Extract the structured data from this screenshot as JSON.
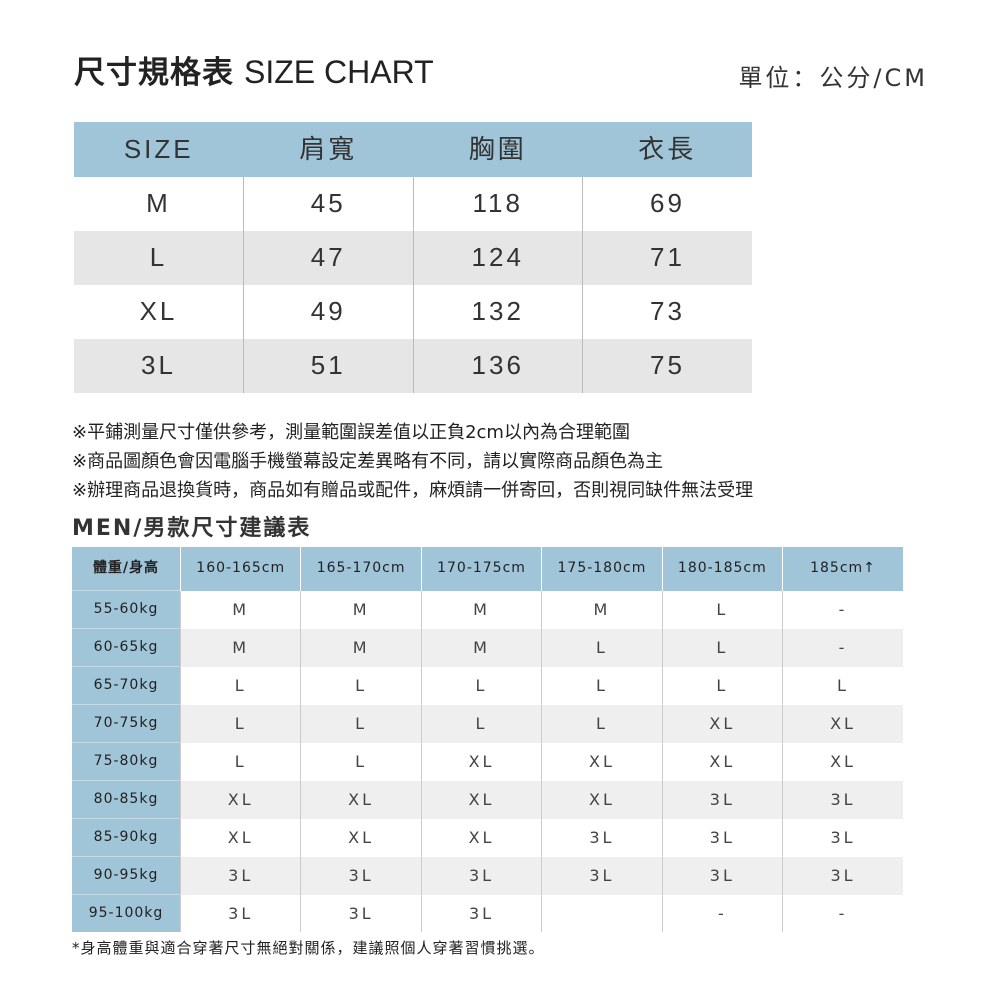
{
  "header": {
    "title_zh": "尺寸規格表",
    "title_en": "SIZE CHART",
    "unit": "單位：公分/CM"
  },
  "size_table": {
    "columns": [
      "SIZE",
      "肩寬",
      "胸圍",
      "衣長"
    ],
    "rows": [
      [
        "M",
        "45",
        "118",
        "69"
      ],
      [
        "L",
        "47",
        "124",
        "71"
      ],
      [
        "XL",
        "49",
        "132",
        "73"
      ],
      [
        "3L",
        "51",
        "136",
        "75"
      ]
    ]
  },
  "notes": [
    "※平鋪測量尺寸僅供參考，測量範圍誤差值以正負2cm以內為合理範圍",
    "※商品圖顏色會因電腦手機螢幕設定差異略有不同，請以實際商品顏色為主",
    "※辦理商品退換貨時，商品如有贈品或配件，麻煩請一併寄回，否則視同缺件無法受理"
  ],
  "men": {
    "title": "MEN/男款尺寸建議表",
    "columns": [
      "體重/身高",
      "160-165cm",
      "165-170cm",
      "170-175cm",
      "175-180cm",
      "180-185cm",
      "185cm↑"
    ],
    "rows": [
      [
        "55-60kg",
        "M",
        "M",
        "M",
        "M",
        "L",
        "-"
      ],
      [
        "60-65kg",
        "M",
        "M",
        "M",
        "L",
        "L",
        "-"
      ],
      [
        "65-70kg",
        "L",
        "L",
        "L",
        "L",
        "L",
        "L"
      ],
      [
        "70-75kg",
        "L",
        "L",
        "L",
        "L",
        "XL",
        "XL"
      ],
      [
        "75-80kg",
        "L",
        "L",
        "XL",
        "XL",
        "XL",
        "XL"
      ],
      [
        "80-85kg",
        "XL",
        "XL",
        "XL",
        "XL",
        "3L",
        "3L"
      ],
      [
        "85-90kg",
        "XL",
        "XL",
        "XL",
        "3L",
        "3L",
        "3L"
      ],
      [
        "90-95kg",
        "3L",
        "3L",
        "3L",
        "3L",
        "3L",
        "3L"
      ],
      [
        "95-100kg",
        "3L",
        "3L",
        "3L",
        "",
        "-",
        "-"
      ]
    ],
    "footnote": "*身高體重與適合穿著尺寸無絕對關係，建議照個人穿著習慣挑選。"
  },
  "colors": {
    "header_blue": "#a0c5d8",
    "stripe": "#e6e6e6"
  }
}
